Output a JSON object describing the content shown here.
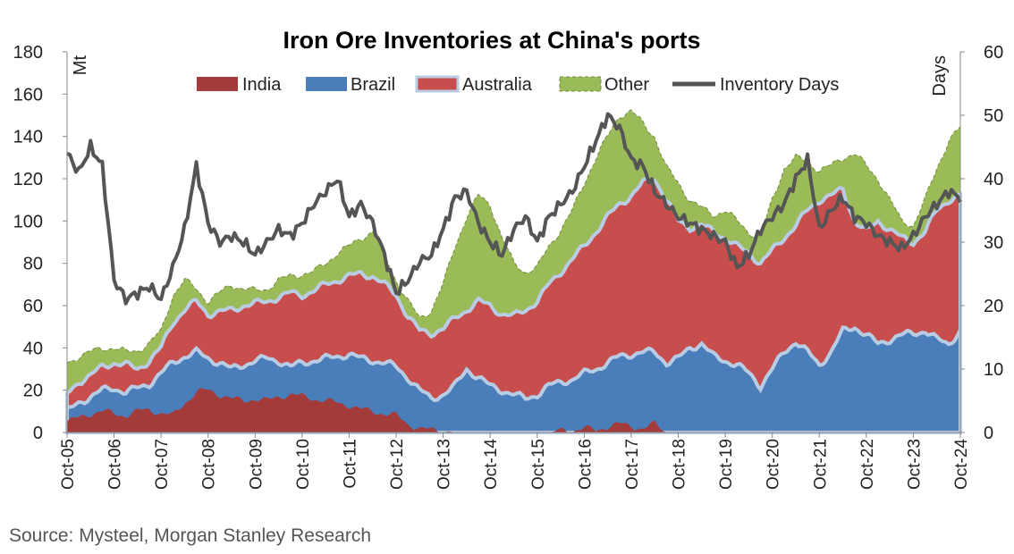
{
  "chart_data": {
    "type": "area",
    "title": "Iron Ore Inventories at China's ports",
    "y_left_unit": "Mt",
    "y_right_unit": "Days",
    "ylim_left": [
      0,
      180
    ],
    "ylim_right": [
      0,
      60
    ],
    "y_left_ticks": [
      "0",
      "20",
      "40",
      "60",
      "80",
      "100",
      "120",
      "140",
      "160",
      "180"
    ],
    "y_right_ticks": [
      "0",
      "10",
      "20",
      "30",
      "40",
      "50",
      "60"
    ],
    "x_tick_labels": [
      "Oct-05",
      "Oct-06",
      "Oct-07",
      "Oct-08",
      "Oct-09",
      "Oct-10",
      "Oct-11",
      "Oct-12",
      "Oct-13",
      "Oct-14",
      "Oct-15",
      "Oct-16",
      "Oct-17",
      "Oct-18",
      "Oct-19",
      "Oct-20",
      "Oct-21",
      "Oct-22",
      "Oct-23",
      "Oct-24"
    ],
    "x_dates": [
      "2005-10",
      "2006-01",
      "2006-04",
      "2006-07",
      "2006-10",
      "2007-01",
      "2007-04",
      "2007-07",
      "2007-10",
      "2008-01",
      "2008-04",
      "2008-07",
      "2008-10",
      "2009-01",
      "2009-04",
      "2009-07",
      "2009-10",
      "2010-01",
      "2010-04",
      "2010-07",
      "2010-10",
      "2011-01",
      "2011-04",
      "2011-07",
      "2011-10",
      "2012-01",
      "2012-04",
      "2012-07",
      "2012-10",
      "2013-01",
      "2013-04",
      "2013-07",
      "2013-10",
      "2014-01",
      "2014-04",
      "2014-07",
      "2014-10",
      "2015-01",
      "2015-04",
      "2015-07",
      "2015-10",
      "2016-01",
      "2016-04",
      "2016-07",
      "2016-10",
      "2017-01",
      "2017-04",
      "2017-07",
      "2017-10",
      "2018-01",
      "2018-04",
      "2018-07",
      "2018-10",
      "2019-01",
      "2019-04",
      "2019-07",
      "2019-10",
      "2020-01",
      "2020-04",
      "2020-07",
      "2020-10",
      "2021-01",
      "2021-04",
      "2021-07",
      "2021-10",
      "2022-01",
      "2022-04",
      "2022-07",
      "2022-10",
      "2023-01",
      "2023-04",
      "2023-07",
      "2023-10",
      "2024-01",
      "2024-04",
      "2024-07",
      "2024-10"
    ],
    "series": [
      {
        "name": "India",
        "color": "#a33b3b",
        "values": [
          5,
          7,
          9,
          10,
          9,
          8,
          10,
          11,
          9,
          8,
          14,
          19,
          20,
          18,
          16,
          15,
          16,
          15,
          17,
          18,
          17,
          16,
          15,
          14,
          13,
          11,
          10,
          9,
          8,
          4,
          2,
          1,
          1,
          0,
          0,
          0,
          0,
          0,
          0,
          0,
          0,
          0,
          1,
          1,
          2,
          1,
          3,
          4,
          3,
          2,
          4,
          0,
          0,
          0,
          0,
          0,
          0,
          0,
          0,
          0,
          0,
          0,
          0,
          0,
          0,
          0,
          0,
          0,
          0,
          0,
          0,
          0,
          0,
          0,
          0,
          0,
          0
        ]
      },
      {
        "name": "Brazil",
        "color": "#4a7ebb",
        "values": [
          10,
          14,
          17,
          20,
          21,
          19,
          21,
          23,
          28,
          33,
          36,
          38,
          35,
          33,
          30,
          32,
          34,
          35,
          34,
          31,
          33,
          34,
          35,
          36,
          37,
          35,
          34,
          33,
          31,
          26,
          20,
          16,
          18,
          22,
          30,
          26,
          22,
          20,
          18,
          16,
          18,
          22,
          24,
          25,
          28,
          30,
          33,
          36,
          37,
          38,
          38,
          33,
          35,
          40,
          42,
          36,
          34,
          32,
          28,
          22,
          30,
          38,
          43,
          38,
          32,
          38,
          48,
          50,
          46,
          42,
          44,
          46,
          47,
          48,
          44,
          42,
          48
        ]
      },
      {
        "name": "Australia",
        "color": "#c84d4d",
        "values": [
          18,
          24,
          27,
          31,
          33,
          32,
          30,
          34,
          40,
          52,
          58,
          62,
          56,
          57,
          58,
          60,
          61,
          62,
          64,
          66,
          65,
          67,
          70,
          72,
          74,
          75,
          74,
          70,
          65,
          55,
          48,
          47,
          49,
          54,
          58,
          62,
          60,
          56,
          55,
          58,
          62,
          70,
          76,
          82,
          88,
          95,
          102,
          108,
          112,
          118,
          120,
          110,
          100,
          97,
          98,
          95,
          92,
          88,
          85,
          80,
          86,
          92,
          98,
          105,
          110,
          112,
          115,
          100,
          95,
          100,
          96,
          92,
          90,
          95,
          105,
          110,
          112
        ]
      },
      {
        "name": "Other",
        "color": "#9bbb59",
        "values": [
          33,
          36,
          38,
          40,
          40,
          38,
          39,
          42,
          48,
          65,
          72,
          68,
          62,
          66,
          70,
          68,
          67,
          68,
          72,
          74,
          75,
          76,
          80,
          85,
          88,
          92,
          95,
          84,
          72,
          62,
          54,
          58,
          70,
          88,
          102,
          112,
          108,
          92,
          80,
          76,
          78,
          88,
          96,
          105,
          118,
          130,
          140,
          150,
          152,
          146,
          140,
          125,
          118,
          110,
          106,
          103,
          105,
          100,
          95,
          92,
          110,
          125,
          130,
          128,
          124,
          126,
          130,
          132,
          126,
          120,
          110,
          100,
          98,
          110,
          125,
          138,
          144
        ]
      }
    ],
    "line": {
      "name": "Inventory Days",
      "color": "#555555",
      "axis": "right",
      "values": [
        44,
        41,
        45,
        42,
        24,
        21,
        22,
        23,
        21,
        26,
        32,
        42,
        33,
        30,
        31,
        30,
        28,
        30,
        32,
        31,
        33,
        36,
        38,
        40,
        34,
        36,
        33,
        28,
        22,
        24,
        27,
        28,
        32,
        37,
        38,
        33,
        30,
        28,
        32,
        34,
        30,
        34,
        36,
        38,
        42,
        46,
        50,
        48,
        43,
        42,
        38,
        36,
        34,
        33,
        32,
        31,
        30,
        26,
        28,
        32,
        34,
        36,
        40,
        43,
        32,
        35,
        37,
        34,
        33,
        31,
        30,
        29,
        31,
        34,
        36,
        38,
        37
      ]
    }
  },
  "source": "Source: Mysteel, Morgan Stanley Research"
}
